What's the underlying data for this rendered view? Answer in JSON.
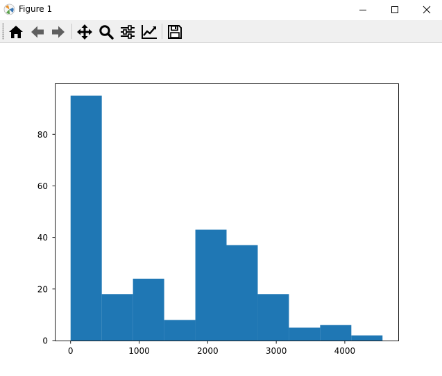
{
  "window": {
    "title": "Figure 1",
    "controls": [
      "minimize",
      "maximize",
      "close"
    ]
  },
  "toolbar": {
    "buttons": [
      {
        "name": "home",
        "icon": "home-icon"
      },
      {
        "name": "back",
        "icon": "arrow-left-icon"
      },
      {
        "name": "forward",
        "icon": "arrow-right-icon"
      },
      {
        "name": "pan",
        "icon": "move-icon"
      },
      {
        "name": "zoom",
        "icon": "magnifier-icon"
      },
      {
        "name": "configure-subplots",
        "icon": "sliders-icon"
      },
      {
        "name": "edit-axis",
        "icon": "line-chart-icon"
      },
      {
        "name": "save",
        "icon": "floppy-disk-icon"
      }
    ]
  },
  "chart_data": {
    "type": "bar",
    "title": "",
    "xlabel": "",
    "ylabel": "",
    "bin_edges": [
      0,
      455,
      910,
      1365,
      1820,
      2275,
      2730,
      3185,
      3640,
      4095,
      4550
    ],
    "values": [
      95,
      18,
      24,
      8,
      43,
      37,
      18,
      5,
      6,
      2
    ],
    "xlim": [
      -230,
      4780
    ],
    "ylim": [
      0,
      99.75
    ],
    "xticks": [
      0,
      1000,
      2000,
      3000,
      4000
    ],
    "xtick_labels": [
      "0",
      "1000",
      "2000",
      "3000",
      "4000"
    ],
    "yticks": [
      0,
      20,
      40,
      60,
      80
    ],
    "ytick_labels": [
      "0",
      "20",
      "40",
      "60",
      "80"
    ],
    "bar_color": "#1f77b4",
    "grid": false
  }
}
